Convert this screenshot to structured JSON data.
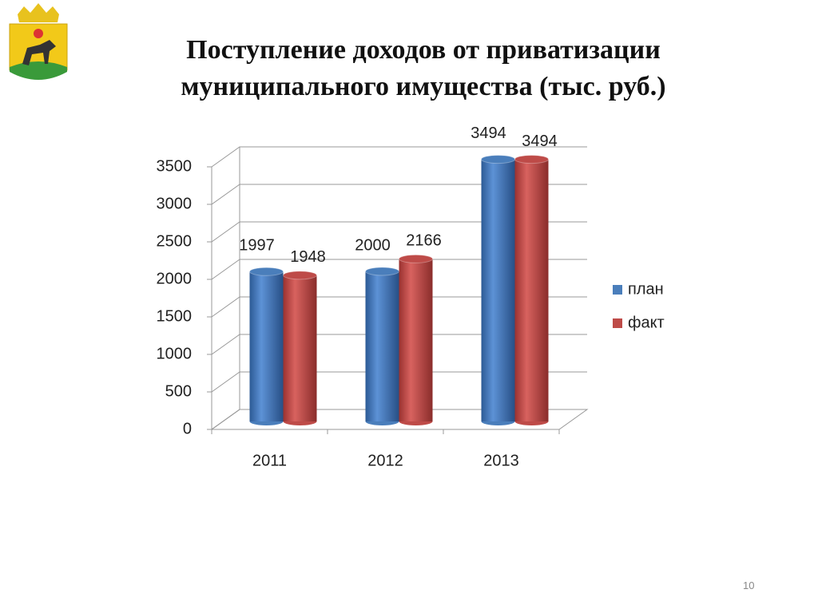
{
  "chart_data": {
    "type": "bar3d",
    "title": "Поступление доходов от приватизации муниципального имущества (тыс. руб.)",
    "categories": [
      "2011",
      "2012",
      "2013"
    ],
    "series": [
      {
        "name": "план",
        "color": "#4a7ebb",
        "values": [
          1997,
          2000,
          3494
        ]
      },
      {
        "name": "факт",
        "color": "#be4b48",
        "values": [
          1948,
          2166,
          3494
        ]
      }
    ],
    "ylim": [
      0,
      3500
    ],
    "yticks": [
      0,
      500,
      1000,
      1500,
      2000,
      2500,
      3000,
      3500
    ],
    "grid": true,
    "legend": "right"
  },
  "page_number": "10"
}
